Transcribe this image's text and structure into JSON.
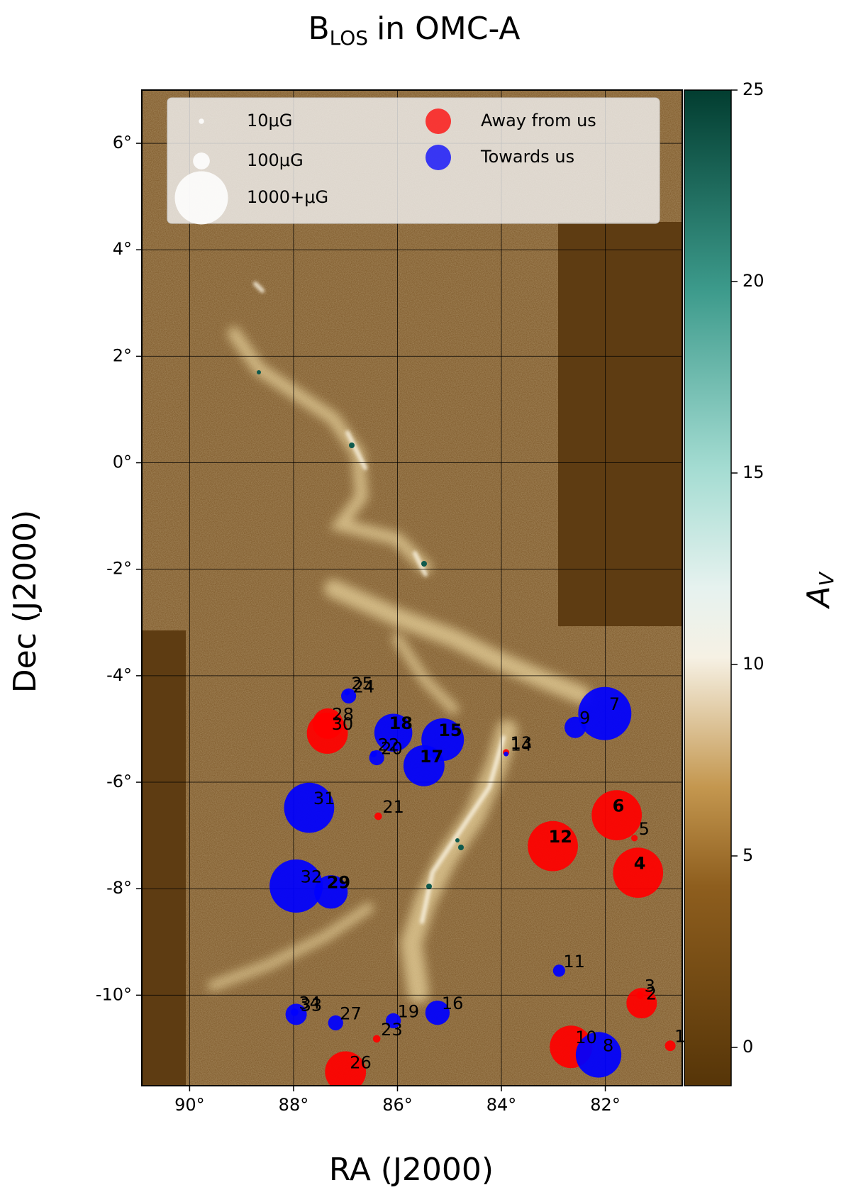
{
  "chart_data": {
    "type": "bubble",
    "title": {
      "main": "B",
      "subscript": "LOS",
      "rest": "in OMC-A"
    },
    "xlabel": "RA (J2000)",
    "ylabel": "Dec (J2000)",
    "xlim": [
      90.92,
      80.52
    ],
    "ylim": [
      -11.7,
      7.0
    ],
    "xticks": [
      {
        "value": 90,
        "label": "90°"
      },
      {
        "value": 88,
        "label": "88°"
      },
      {
        "value": 86,
        "label": "86°"
      },
      {
        "value": 84,
        "label": "84°"
      },
      {
        "value": 82,
        "label": "82°"
      }
    ],
    "yticks": [
      {
        "value": 6,
        "label": "6°"
      },
      {
        "value": 4,
        "label": "4°"
      },
      {
        "value": 2,
        "label": "2°"
      },
      {
        "value": 0,
        "label": "0°"
      },
      {
        "value": -2,
        "label": "-2°"
      },
      {
        "value": -4,
        "label": "-4°"
      },
      {
        "value": -6,
        "label": "-6°"
      },
      {
        "value": -8,
        "label": "-8°"
      },
      {
        "value": -10,
        "label": "-10°"
      }
    ],
    "grid": true,
    "colorbar": {
      "label": {
        "main": "A",
        "subscript": "V"
      },
      "lim": [
        -1,
        25
      ],
      "ticks": [
        0,
        5,
        10,
        15,
        20,
        25
      ]
    },
    "size_legend": [
      {
        "value": 10,
        "label": "10μG"
      },
      {
        "value": 100,
        "label": "100μG"
      },
      {
        "value": 1000,
        "label": "1000+μG"
      }
    ],
    "legend_position": "upper",
    "series": [
      {
        "name": "Away from us",
        "color": "#ff0000",
        "labels": [
          "1",
          "2",
          "3",
          "4",
          "5",
          "6",
          "10",
          "12",
          "13",
          "21",
          "23",
          "26",
          "28",
          "30"
        ],
        "x": [
          80.75,
          81.3,
          81.33,
          81.37,
          81.44,
          81.78,
          82.66,
          83.01,
          83.91,
          86.37,
          86.4,
          87.0,
          87.34,
          87.35
        ],
        "y": [
          -10.95,
          -10.15,
          -10.0,
          -7.7,
          -7.05,
          -6.62,
          -10.97,
          -7.2,
          -5.44,
          -6.64,
          -10.82,
          -11.44,
          -4.9,
          -5.08
        ],
        "sizes": [
          40,
          330,
          20,
          890,
          15,
          890,
          640,
          890,
          15,
          20,
          20,
          595,
          330,
          595
        ],
        "label_colors": [
          "#000000",
          "#000000",
          "#000000",
          "#ffffff",
          "#000000",
          "#ffffff",
          "#000000",
          "#ffffff",
          "#000000",
          "#000000",
          "#000000",
          "#000000",
          "#000000",
          "#000000"
        ]
      },
      {
        "name": "Towards us",
        "color": "#0000ff",
        "labels": [
          "7",
          "8",
          "9",
          "11",
          "14",
          "15",
          "16",
          "17",
          "18",
          "19",
          "20",
          "22",
          "24",
          "25",
          "27",
          "29",
          "31",
          "32",
          "33",
          "34"
        ],
        "x": [
          82.01,
          82.13,
          82.58,
          82.89,
          83.91,
          85.13,
          85.23,
          85.49,
          86.08,
          86.08,
          86.4,
          86.46,
          86.94,
          86.97,
          87.19,
          87.28,
          87.7,
          87.95,
          87.95,
          87.98
        ],
        "y": [
          -4.71,
          -11.12,
          -4.97,
          -9.54,
          -5.47,
          -5.2,
          -10.33,
          -5.69,
          -5.07,
          -10.48,
          -5.54,
          -5.47,
          -4.38,
          -4.32,
          -10.52,
          -8.06,
          -6.48,
          -7.95,
          -10.36,
          -10.32
        ],
        "sizes": [
          1000,
          735,
          160,
          52,
          8,
          640,
          210,
          595,
          510,
          80,
          80,
          15,
          80,
          10,
          80,
          395,
          890,
          1000,
          160,
          20
        ],
        "label_colors": [
          "#000000",
          "#000000",
          "#000000",
          "#000000",
          "#000000",
          "#ffffff",
          "#000000",
          "#ffffff",
          "#ffffff",
          "#000000",
          "#000000",
          "#000000",
          "#000000",
          "#000000",
          "#000000",
          "#ffffff",
          "#000000",
          "#000000",
          "#000000",
          "#000000"
        ]
      }
    ]
  }
}
